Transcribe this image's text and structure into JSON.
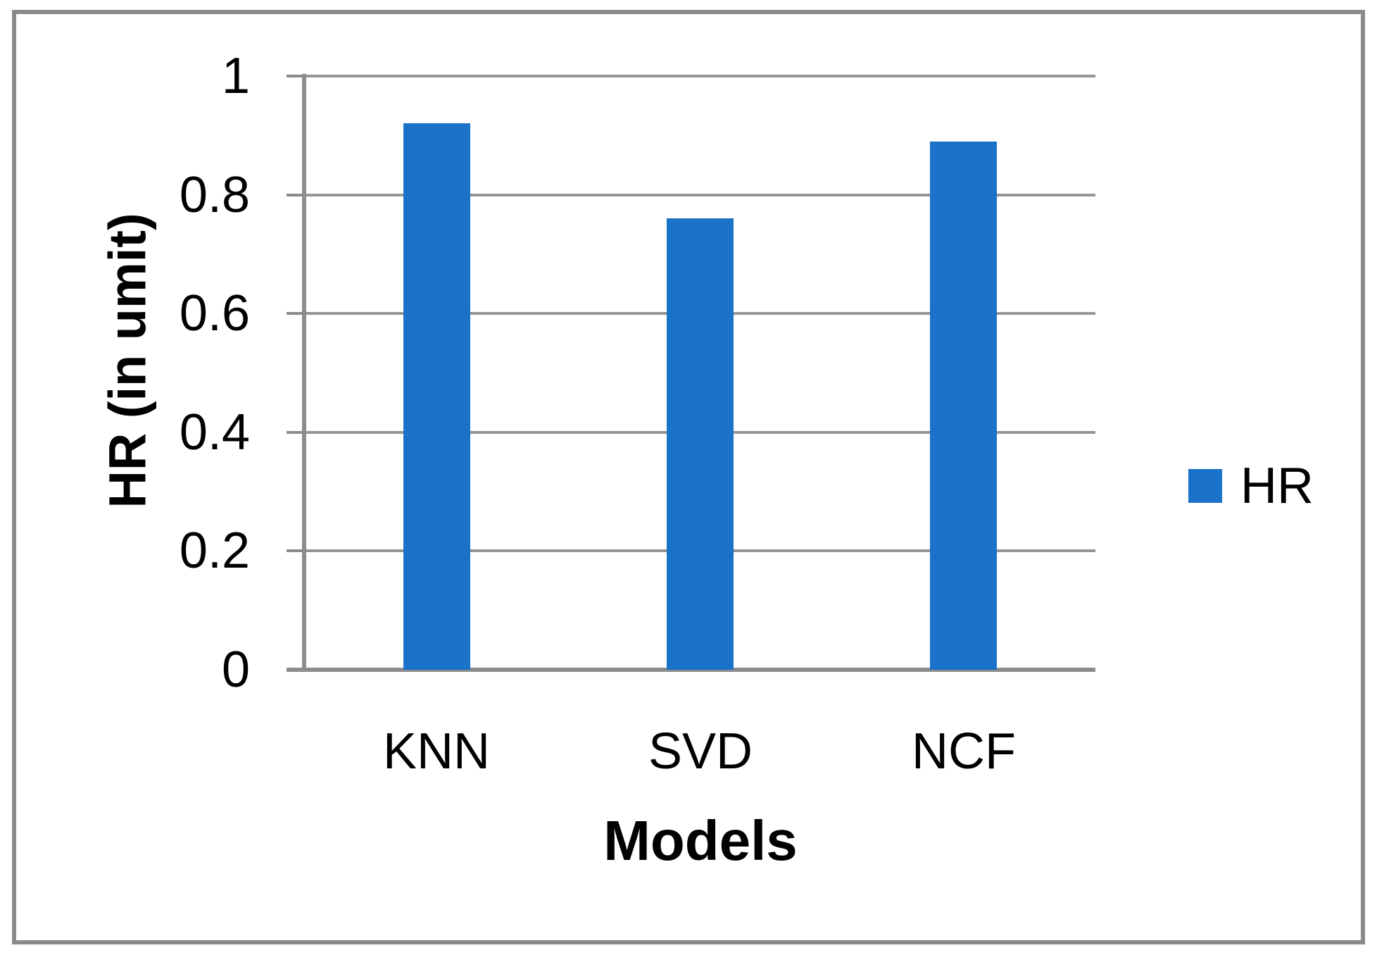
{
  "chart_data": {
    "type": "bar",
    "categories": [
      "KNN",
      "SVD",
      "NCF"
    ],
    "series": [
      {
        "name": "HR",
        "values": [
          0.92,
          0.76,
          0.89
        ]
      }
    ],
    "title": "",
    "xlabel": "Models",
    "ylabel": "HR (in umit)",
    "ylim": [
      0,
      1
    ],
    "ytick_interval": 0.2,
    "yticks": [
      0,
      0.2,
      0.4,
      0.6,
      0.8,
      1
    ],
    "ytick_labels": [
      "0",
      "0.2",
      "0.4",
      "0.6",
      "0.8",
      "1"
    ],
    "grid": true,
    "legend_position": "right-middle",
    "bar_color": "#1a73c8",
    "gridline_color": "#959595",
    "axis_color": "#8c8c8c",
    "frame_color": "#8a8a8a",
    "text_color": "#000000"
  },
  "axes": {
    "y_title": "HR (in umit)",
    "x_title": "Models"
  },
  "legend": {
    "items": [
      {
        "label": "HR",
        "color": "#1a73c8"
      }
    ]
  }
}
